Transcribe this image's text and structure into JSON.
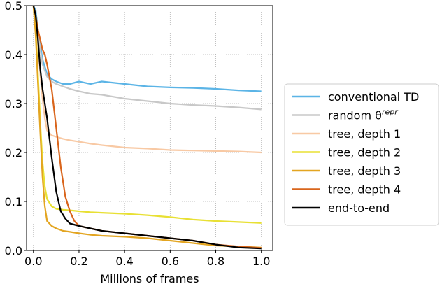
{
  "chart_data": {
    "type": "line",
    "title": "",
    "xlabel": "Millions of frames",
    "ylabel": "",
    "xlim": [
      -0.03,
      1.05
    ],
    "ylim": [
      0.0,
      0.5
    ],
    "xticks": [
      0.0,
      0.2,
      0.4,
      0.6,
      0.8,
      1.0
    ],
    "xtick_labels": [
      "0.0",
      "0.2",
      "0.4",
      "0.6",
      "0.8",
      "1.0"
    ],
    "yticks": [
      0.0,
      0.1,
      0.2,
      0.3,
      0.4,
      0.5
    ],
    "ytick_labels": [
      "0.0",
      "0.1",
      "0.2",
      "0.3",
      "0.4",
      "0.5"
    ],
    "grid": true,
    "legend_position": "right, outside plot",
    "series": [
      {
        "name": "conventional TD",
        "color": "#5bb4e6",
        "x": [
          0.0,
          0.01,
          0.02,
          0.04,
          0.06,
          0.08,
          0.1,
          0.13,
          0.16,
          0.2,
          0.25,
          0.3,
          0.4,
          0.5,
          0.6,
          0.7,
          0.8,
          0.9,
          1.0
        ],
        "y": [
          0.5,
          0.49,
          0.45,
          0.39,
          0.36,
          0.35,
          0.345,
          0.34,
          0.34,
          0.345,
          0.34,
          0.345,
          0.34,
          0.335,
          0.333,
          0.332,
          0.33,
          0.327,
          0.325
        ]
      },
      {
        "name": "random θ^repr",
        "color": "#c8c8c8",
        "x": [
          0.0,
          0.01,
          0.02,
          0.04,
          0.06,
          0.08,
          0.1,
          0.13,
          0.16,
          0.2,
          0.25,
          0.3,
          0.4,
          0.5,
          0.6,
          0.7,
          0.8,
          0.9,
          1.0
        ],
        "y": [
          0.5,
          0.48,
          0.44,
          0.38,
          0.355,
          0.345,
          0.34,
          0.335,
          0.33,
          0.325,
          0.32,
          0.318,
          0.31,
          0.305,
          0.3,
          0.297,
          0.295,
          0.292,
          0.288
        ]
      },
      {
        "name": "tree, depth 1",
        "color": "#f8c9a4",
        "x": [
          0.0,
          0.01,
          0.02,
          0.03,
          0.04,
          0.05,
          0.06,
          0.08,
          0.1,
          0.13,
          0.16,
          0.2,
          0.25,
          0.3,
          0.4,
          0.5,
          0.6,
          0.7,
          0.8,
          0.9,
          1.0
        ],
        "y": [
          0.5,
          0.47,
          0.42,
          0.36,
          0.31,
          0.27,
          0.245,
          0.235,
          0.232,
          0.228,
          0.225,
          0.222,
          0.218,
          0.215,
          0.21,
          0.208,
          0.205,
          0.204,
          0.203,
          0.202,
          0.2
        ]
      },
      {
        "name": "tree, depth 2",
        "color": "#e8e034",
        "x": [
          0.0,
          0.01,
          0.02,
          0.03,
          0.04,
          0.05,
          0.06,
          0.08,
          0.1,
          0.13,
          0.16,
          0.2,
          0.25,
          0.3,
          0.4,
          0.5,
          0.6,
          0.7,
          0.8,
          0.9,
          1.0
        ],
        "y": [
          0.5,
          0.45,
          0.36,
          0.26,
          0.18,
          0.13,
          0.105,
          0.09,
          0.085,
          0.083,
          0.082,
          0.08,
          0.078,
          0.077,
          0.075,
          0.072,
          0.068,
          0.063,
          0.06,
          0.058,
          0.056
        ]
      },
      {
        "name": "tree, depth 3",
        "color": "#e3a521",
        "x": [
          0.0,
          0.01,
          0.02,
          0.03,
          0.04,
          0.05,
          0.06,
          0.08,
          0.1,
          0.13,
          0.16,
          0.2,
          0.25,
          0.3,
          0.4,
          0.5,
          0.6,
          0.7,
          0.8,
          0.9,
          1.0
        ],
        "y": [
          0.5,
          0.44,
          0.34,
          0.24,
          0.15,
          0.09,
          0.06,
          0.05,
          0.045,
          0.04,
          0.038,
          0.035,
          0.032,
          0.03,
          0.028,
          0.025,
          0.02,
          0.015,
          0.01,
          0.008,
          0.006
        ]
      },
      {
        "name": "tree, depth 4",
        "color": "#d9651c",
        "x": [
          0.0,
          0.01,
          0.02,
          0.03,
          0.04,
          0.05,
          0.06,
          0.08,
          0.1,
          0.12,
          0.14,
          0.16,
          0.18,
          0.2,
          0.25,
          0.3,
          0.4,
          0.5,
          0.6,
          0.7,
          0.8,
          0.9,
          1.0
        ],
        "y": [
          0.5,
          0.48,
          0.45,
          0.43,
          0.41,
          0.4,
          0.38,
          0.33,
          0.25,
          0.17,
          0.11,
          0.08,
          0.06,
          0.05,
          0.045,
          0.04,
          0.035,
          0.03,
          0.025,
          0.02,
          0.012,
          0.008,
          0.005
        ]
      },
      {
        "name": "end-to-end",
        "color": "#000000",
        "x": [
          0.0,
          0.01,
          0.02,
          0.03,
          0.04,
          0.05,
          0.06,
          0.08,
          0.1,
          0.12,
          0.14,
          0.16,
          0.2,
          0.25,
          0.3,
          0.4,
          0.5,
          0.6,
          0.7,
          0.8,
          0.9,
          1.0
        ],
        "y": [
          0.5,
          0.48,
          0.43,
          0.37,
          0.33,
          0.3,
          0.27,
          0.19,
          0.12,
          0.08,
          0.065,
          0.055,
          0.05,
          0.045,
          0.04,
          0.035,
          0.03,
          0.025,
          0.02,
          0.012,
          0.006,
          0.004
        ]
      }
    ]
  }
}
